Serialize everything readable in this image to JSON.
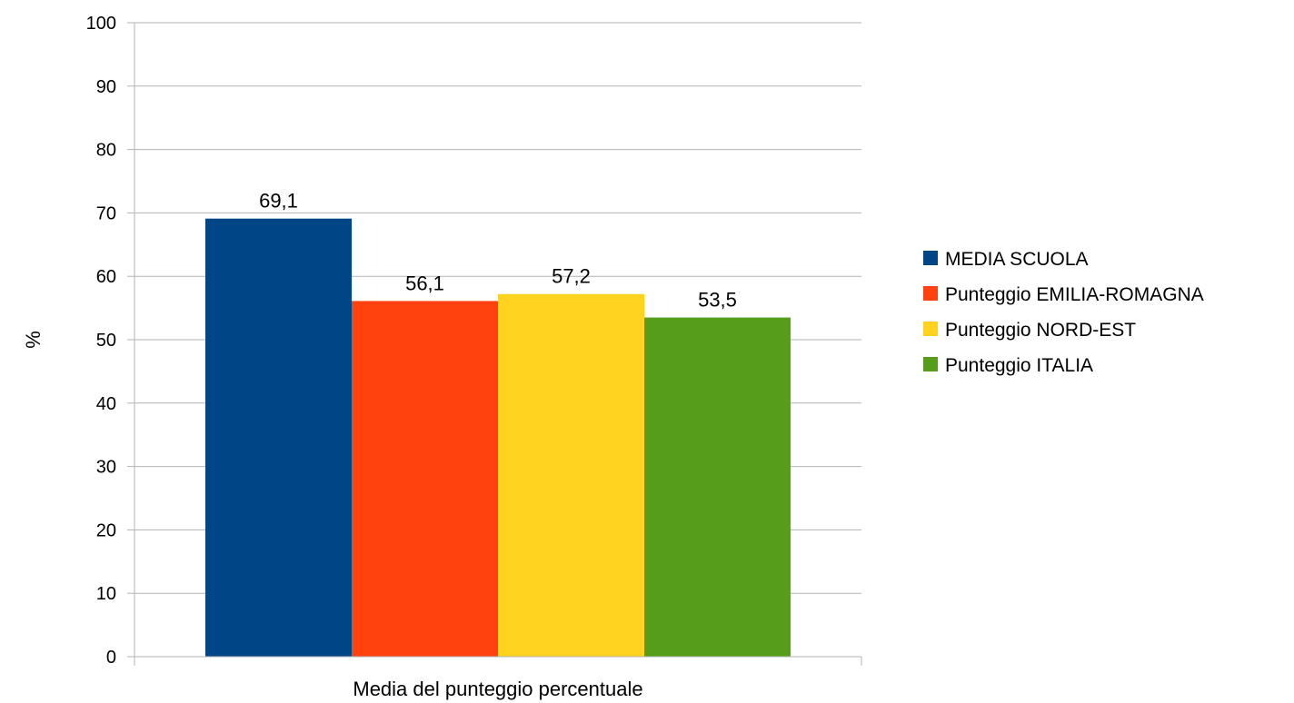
{
  "chart_data": {
    "type": "bar",
    "title": "",
    "categories": [
      "Media del punteggio percentuale"
    ],
    "series": [
      {
        "name": "MEDIA SCUOLA",
        "values": [
          69.1
        ],
        "color": "#004586",
        "label": "69,1"
      },
      {
        "name": "Punteggio EMILIA-ROMAGNA",
        "values": [
          56.1
        ],
        "color": "#ff420e",
        "label": "56,1"
      },
      {
        "name": "Punteggio NORD-EST",
        "values": [
          57.2
        ],
        "color": "#ffd320",
        "label": "57,2"
      },
      {
        "name": "Punteggio ITALIA",
        "values": [
          53.5
        ],
        "color": "#579d1c",
        "label": "53,5"
      }
    ],
    "xlabel": "Media del punteggio percentuale",
    "ylabel": "%",
    "ylim": [
      0,
      100
    ],
    "yticks": [
      0,
      10,
      20,
      30,
      40,
      50,
      60,
      70,
      80,
      90,
      100
    ],
    "grid": true,
    "legend_position": "right"
  }
}
